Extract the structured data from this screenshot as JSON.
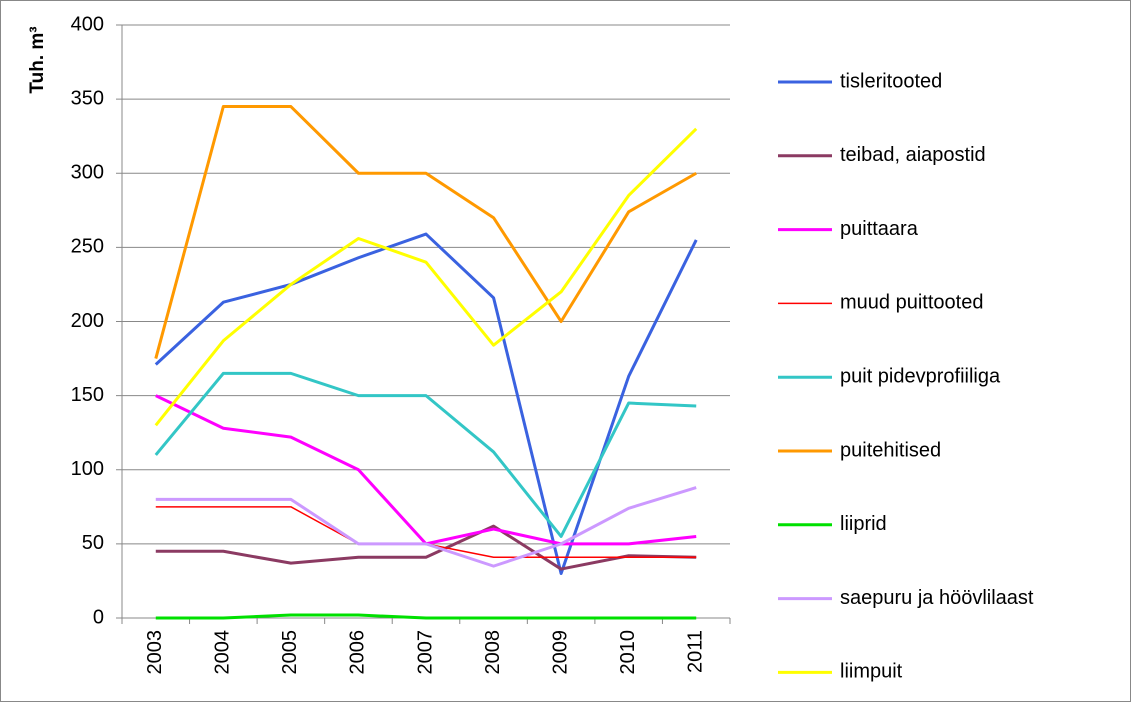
{
  "chart_data": {
    "type": "line",
    "y_label": "Tuh. m³",
    "categories": [
      "2003",
      "2004",
      "2005",
      "2006",
      "2007",
      "2008",
      "2009",
      "2010",
      "2011"
    ],
    "ylim": [
      0,
      400
    ],
    "yticks": [
      0,
      50,
      100,
      150,
      200,
      250,
      300,
      350,
      400
    ],
    "grid": true,
    "legend": "right",
    "series": [
      {
        "name": "tisleritooted",
        "color": "#3a62e0",
        "values": [
          171,
          213,
          225,
          243,
          259,
          216,
          30,
          163,
          255
        ]
      },
      {
        "name": "teibad, aiapostid",
        "color": "#8b3a62",
        "values": [
          45,
          45,
          37,
          41,
          41,
          62,
          33,
          42,
          41
        ]
      },
      {
        "name": "puittaara",
        "color": "#ff00ff",
        "values": [
          150,
          128,
          122,
          100,
          50,
          60,
          50,
          50,
          55
        ]
      },
      {
        "name": "muud puittooted",
        "color": "#ff0000",
        "values": [
          75,
          75,
          75,
          50,
          50,
          41,
          41,
          41,
          41
        ]
      },
      {
        "name": "puit pidevprofiiliga",
        "color": "#33c6c6",
        "values": [
          110,
          165,
          165,
          150,
          150,
          112,
          55,
          145,
          143
        ]
      },
      {
        "name": "puitehitised",
        "color": "#ff9900",
        "values": [
          175,
          345,
          345,
          300,
          300,
          270,
          200,
          274,
          300
        ]
      },
      {
        "name": "liiprid",
        "color": "#00e000",
        "values": [
          0,
          0,
          2,
          2,
          0,
          0,
          0,
          0,
          0
        ]
      },
      {
        "name": "saepuru ja höövlilaast",
        "color": "#cc99ff",
        "values": [
          80,
          80,
          80,
          50,
          50,
          35,
          50,
          74,
          88
        ]
      },
      {
        "name": "liimpuit",
        "color": "#ffff00",
        "values": [
          130,
          187,
          225,
          256,
          240,
          184,
          220,
          285,
          330
        ]
      }
    ]
  }
}
